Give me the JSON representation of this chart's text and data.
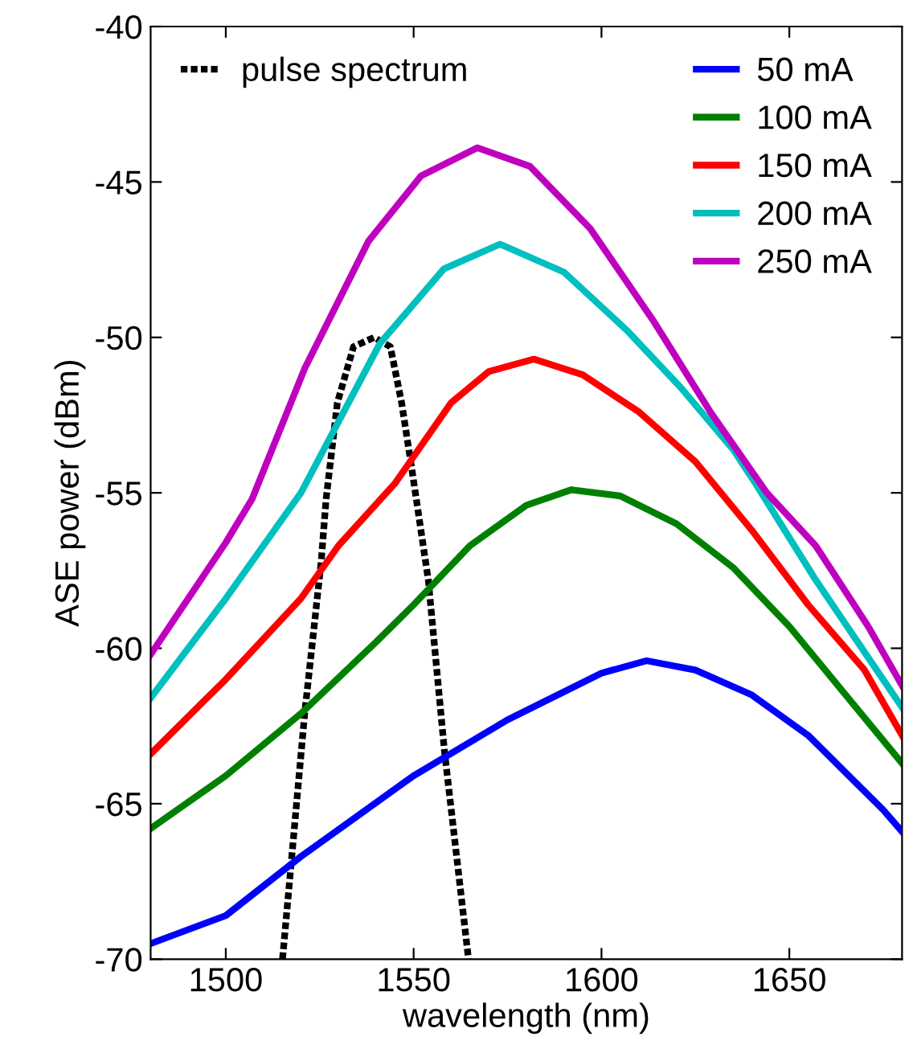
{
  "chart_data": {
    "type": "line",
    "xlabel": "wavelength (nm)",
    "ylabel": "ASE power (dBm)",
    "xlim": [
      1480,
      1680
    ],
    "xticks": [
      1500,
      1550,
      1600,
      1650
    ],
    "ylim": [
      -70,
      -40
    ],
    "yticks": [
      -70,
      -65,
      -60,
      -55,
      -50,
      -45,
      -40
    ],
    "grid": false,
    "legend": "top right",
    "line_style": "solid",
    "series": [
      {
        "name": "pulse spectrum",
        "color": "#000000",
        "line_style": "dotted",
        "x": [
          1515.1,
          1521,
          1525.4,
          1526.7,
          1529.7,
          1534,
          1539.5,
          1543.8,
          1546.8,
          1549.6,
          1553.9,
          1558.2,
          1564.6
        ],
        "values": [
          -70,
          -62.1,
          -57.2,
          -55.2,
          -52.1,
          -50.3,
          -50,
          -50.3,
          -52.1,
          -54.3,
          -57.8,
          -63.3,
          -70
        ]
      },
      {
        "name": "50 mA",
        "color": "#0000ff",
        "x": [
          1480,
          1500,
          1520,
          1550,
          1575,
          1600,
          1612,
          1625,
          1640,
          1655,
          1665,
          1675,
          1680
        ],
        "values": [
          -69.5,
          -68.6,
          -66.7,
          -64.1,
          -62.3,
          -60.8,
          -60.4,
          -60.7,
          -61.5,
          -62.8,
          -64.0,
          -65.2,
          -65.9
        ]
      },
      {
        "name": "100 mA",
        "color": "#008000",
        "x": [
          1480,
          1500,
          1520,
          1540,
          1550,
          1565,
          1580,
          1592,
          1605,
          1620,
          1635,
          1650,
          1665,
          1680
        ],
        "values": [
          -65.8,
          -64.1,
          -62.1,
          -59.8,
          -58.6,
          -56.7,
          -55.4,
          -54.9,
          -55.1,
          -56.0,
          -57.4,
          -59.3,
          -61.5,
          -63.7
        ]
      },
      {
        "name": "150 mA",
        "color": "#ff0000",
        "x": [
          1480,
          1500,
          1520,
          1530,
          1545,
          1560,
          1570,
          1582,
          1595,
          1610,
          1625,
          1640,
          1655,
          1670,
          1680
        ],
        "values": [
          -63.4,
          -61.0,
          -58.4,
          -56.7,
          -54.7,
          -52.1,
          -51.1,
          -50.7,
          -51.2,
          -52.4,
          -54.0,
          -56.2,
          -58.6,
          -60.7,
          -62.8
        ]
      },
      {
        "name": "200 mA",
        "color": "#00bfbf",
        "x": [
          1480,
          1500,
          1520,
          1541,
          1558,
          1573,
          1590,
          1607,
          1621,
          1635,
          1641,
          1657,
          1671,
          1680
        ],
        "values": [
          -61.6,
          -58.4,
          -55.0,
          -50.2,
          -47.8,
          -47.0,
          -47.9,
          -49.8,
          -51.6,
          -53.6,
          -54.7,
          -57.8,
          -60.3,
          -61.9
        ]
      },
      {
        "name": "250 mA",
        "color": "#bf00bf",
        "x": [
          1480,
          1500,
          1507,
          1521,
          1538,
          1552,
          1567,
          1581,
          1597,
          1614,
          1629,
          1644,
          1657,
          1671,
          1680
        ],
        "values": [
          -60.2,
          -56.6,
          -55.2,
          -51.0,
          -46.9,
          -44.8,
          -43.9,
          -44.5,
          -46.5,
          -49.5,
          -52.4,
          -55.0,
          -56.7,
          -59.3,
          -61.2
        ]
      }
    ]
  }
}
